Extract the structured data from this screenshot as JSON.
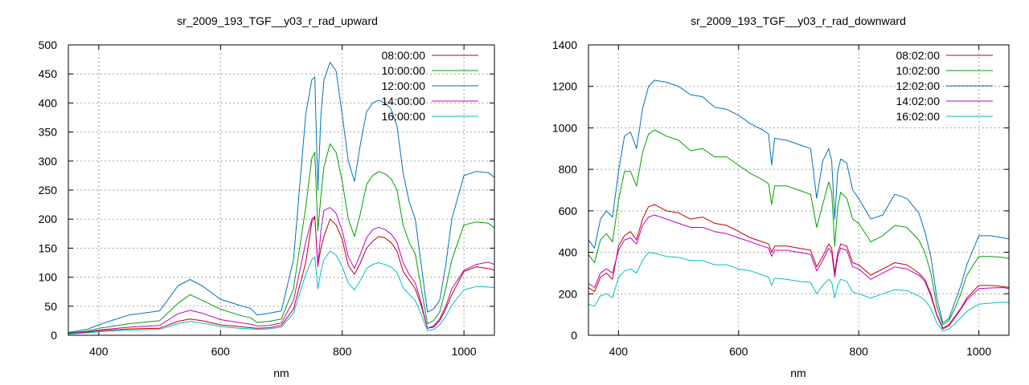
{
  "chart_data": [
    {
      "type": "line",
      "title": "sr_2009_193_TGF__y03_r_rad_upward",
      "xlabel": "nm",
      "ylabel": "",
      "xlim": [
        350,
        1050
      ],
      "ylim": [
        0,
        500
      ],
      "xticks": [
        400,
        600,
        800,
        1000
      ],
      "yticks": [
        0,
        50,
        100,
        150,
        200,
        250,
        300,
        350,
        400,
        450,
        500
      ],
      "grid": true,
      "legend_position": "top-right",
      "series": [
        {
          "name": "08:00:00",
          "color": "#c00000",
          "x": [
            350,
            380,
            400,
            420,
            450,
            500,
            530,
            550,
            570,
            600,
            630,
            650,
            660,
            680,
            700,
            720,
            740,
            750,
            755,
            760,
            765,
            770,
            780,
            790,
            800,
            810,
            820,
            830,
            840,
            850,
            860,
            870,
            880,
            890,
            900,
            910,
            920,
            930,
            940,
            950,
            960,
            970,
            980,
            1000,
            1020,
            1040,
            1050
          ],
          "y": [
            3,
            5,
            8,
            9,
            11,
            12,
            24,
            28,
            25,
            18,
            15,
            13,
            12,
            13,
            17,
            45,
            125,
            195,
            205,
            120,
            150,
            170,
            200,
            190,
            165,
            120,
            105,
            125,
            150,
            162,
            170,
            168,
            160,
            145,
            110,
            95,
            80,
            50,
            12,
            14,
            25,
            45,
            70,
            110,
            118,
            115,
            112
          ]
        },
        {
          "name": "10:00:00",
          "color": "#00a000",
          "x": [
            350,
            380,
            400,
            420,
            450,
            500,
            530,
            550,
            570,
            600,
            630,
            650,
            660,
            680,
            700,
            720,
            740,
            750,
            755,
            760,
            765,
            770,
            780,
            790,
            800,
            810,
            820,
            830,
            840,
            850,
            860,
            870,
            880,
            890,
            900,
            910,
            920,
            930,
            940,
            950,
            960,
            970,
            980,
            1000,
            1020,
            1040,
            1050
          ],
          "y": [
            4,
            7,
            12,
            15,
            20,
            25,
            55,
            70,
            60,
            45,
            35,
            30,
            22,
            24,
            28,
            80,
            220,
            305,
            315,
            180,
            240,
            290,
            330,
            315,
            265,
            200,
            170,
            210,
            260,
            275,
            282,
            278,
            270,
            250,
            190,
            160,
            140,
            80,
            20,
            25,
            40,
            80,
            130,
            190,
            195,
            193,
            185
          ]
        },
        {
          "name": "12:00:00",
          "color": "#0070c0",
          "x": [
            350,
            380,
            400,
            420,
            450,
            500,
            530,
            550,
            570,
            600,
            630,
            650,
            660,
            680,
            700,
            720,
            740,
            750,
            755,
            760,
            765,
            770,
            780,
            790,
            800,
            810,
            820,
            830,
            840,
            850,
            860,
            870,
            880,
            890,
            900,
            910,
            920,
            930,
            940,
            950,
            960,
            970,
            980,
            1000,
            1020,
            1040,
            1050
          ],
          "y": [
            5,
            10,
            18,
            25,
            35,
            42,
            85,
            96,
            85,
            62,
            52,
            46,
            35,
            38,
            42,
            130,
            380,
            440,
            445,
            250,
            380,
            440,
            470,
            455,
            380,
            300,
            265,
            330,
            385,
            400,
            405,
            400,
            390,
            360,
            280,
            230,
            200,
            120,
            40,
            45,
            60,
            120,
            200,
            275,
            282,
            280,
            272
          ]
        },
        {
          "name": "14:00:00",
          "color": "#c000c0",
          "x": [
            350,
            380,
            400,
            420,
            450,
            500,
            530,
            550,
            570,
            600,
            630,
            650,
            660,
            680,
            700,
            720,
            740,
            750,
            755,
            760,
            765,
            770,
            780,
            790,
            800,
            810,
            820,
            830,
            840,
            850,
            860,
            870,
            880,
            890,
            900,
            910,
            920,
            930,
            940,
            950,
            960,
            970,
            980,
            1000,
            1020,
            1040,
            1050
          ],
          "y": [
            3,
            6,
            9,
            11,
            14,
            17,
            37,
            43,
            38,
            27,
            22,
            19,
            16,
            17,
            21,
            60,
            160,
            200,
            205,
            118,
            180,
            215,
            220,
            210,
            180,
            135,
            115,
            140,
            168,
            182,
            186,
            182,
            175,
            160,
            125,
            105,
            90,
            55,
            12,
            16,
            28,
            50,
            80,
            112,
            122,
            126,
            122
          ]
        },
        {
          "name": "16:00:00",
          "color": "#00c0c0",
          "x": [
            350,
            380,
            400,
            420,
            450,
            500,
            530,
            550,
            570,
            600,
            630,
            650,
            660,
            680,
            700,
            720,
            740,
            750,
            755,
            760,
            765,
            770,
            780,
            790,
            800,
            810,
            820,
            830,
            840,
            850,
            860,
            870,
            880,
            890,
            900,
            910,
            920,
            930,
            940,
            950,
            960,
            970,
            980,
            1000,
            1020,
            1040,
            1050
          ],
          "y": [
            2,
            4,
            6,
            7,
            9,
            10,
            20,
            24,
            21,
            15,
            12,
            11,
            10,
            11,
            14,
            38,
            105,
            130,
            135,
            80,
            110,
            130,
            145,
            138,
            118,
            90,
            78,
            95,
            115,
            122,
            125,
            122,
            118,
            108,
            82,
            70,
            60,
            35,
            8,
            10,
            18,
            32,
            52,
            78,
            84,
            83,
            82
          ]
        }
      ]
    },
    {
      "type": "line",
      "title": "sr_2009_193_TGF__y03_r_rad_downward",
      "xlabel": "nm",
      "ylabel": "",
      "xlim": [
        350,
        1050
      ],
      "ylim": [
        0,
        1400
      ],
      "xticks": [
        400,
        600,
        800,
        1000
      ],
      "yticks": [
        0,
        200,
        400,
        600,
        800,
        1000,
        1200,
        1400
      ],
      "grid": true,
      "legend_position": "top-right",
      "series": [
        {
          "name": "08:02:00",
          "color": "#c00000",
          "x": [
            350,
            360,
            370,
            380,
            390,
            400,
            410,
            420,
            430,
            440,
            450,
            460,
            480,
            500,
            520,
            540,
            560,
            580,
            600,
            620,
            640,
            650,
            655,
            660,
            680,
            700,
            720,
            730,
            740,
            750,
            755,
            760,
            765,
            770,
            780,
            790,
            800,
            820,
            840,
            860,
            880,
            900,
            910,
            920,
            930,
            940,
            950,
            960,
            970,
            980,
            1000,
            1020,
            1040,
            1050
          ],
          "y": [
            230,
            210,
            280,
            300,
            270,
            430,
            480,
            500,
            460,
            560,
            620,
            630,
            600,
            590,
            560,
            570,
            540,
            530,
            500,
            470,
            450,
            440,
            400,
            430,
            430,
            420,
            410,
            330,
            380,
            440,
            420,
            300,
            400,
            440,
            430,
            350,
            340,
            290,
            320,
            350,
            340,
            300,
            270,
            200,
            100,
            35,
            50,
            90,
            130,
            180,
            240,
            240,
            235,
            230
          ]
        },
        {
          "name": "10:02:00",
          "color": "#00a000",
          "x": [
            350,
            360,
            370,
            380,
            390,
            400,
            410,
            420,
            430,
            440,
            450,
            460,
            480,
            500,
            520,
            540,
            560,
            580,
            600,
            620,
            640,
            650,
            655,
            660,
            680,
            700,
            720,
            730,
            740,
            750,
            755,
            760,
            765,
            770,
            780,
            790,
            800,
            820,
            840,
            860,
            880,
            900,
            910,
            920,
            930,
            940,
            950,
            960,
            970,
            980,
            1000,
            1020,
            1040,
            1050
          ],
          "y": [
            390,
            350,
            460,
            490,
            450,
            650,
            790,
            790,
            720,
            880,
            970,
            990,
            960,
            940,
            890,
            900,
            860,
            860,
            820,
            780,
            750,
            730,
            630,
            720,
            720,
            700,
            680,
            520,
            630,
            740,
            690,
            430,
            620,
            690,
            660,
            560,
            540,
            450,
            480,
            530,
            520,
            460,
            400,
            300,
            140,
            50,
            70,
            130,
            200,
            290,
            380,
            380,
            375,
            370
          ]
        },
        {
          "name": "12:02:00",
          "color": "#0070c0",
          "x": [
            350,
            360,
            370,
            380,
            390,
            400,
            410,
            420,
            430,
            440,
            450,
            460,
            480,
            500,
            520,
            540,
            560,
            580,
            600,
            620,
            640,
            650,
            655,
            660,
            680,
            700,
            720,
            730,
            740,
            750,
            755,
            760,
            765,
            770,
            780,
            790,
            800,
            820,
            840,
            860,
            880,
            900,
            910,
            920,
            930,
            940,
            950,
            960,
            970,
            980,
            1000,
            1020,
            1040,
            1050
          ],
          "y": [
            460,
            420,
            560,
            600,
            570,
            790,
            960,
            980,
            900,
            1090,
            1200,
            1230,
            1220,
            1200,
            1160,
            1150,
            1100,
            1090,
            1060,
            1020,
            990,
            970,
            820,
            950,
            940,
            920,
            900,
            660,
            840,
            900,
            840,
            560,
            790,
            850,
            830,
            700,
            660,
            560,
            580,
            680,
            660,
            590,
            500,
            380,
            180,
            60,
            80,
            160,
            240,
            340,
            480,
            480,
            470,
            465
          ]
        },
        {
          "name": "14:02:00",
          "color": "#c000c0",
          "x": [
            350,
            360,
            370,
            380,
            390,
            400,
            410,
            420,
            430,
            440,
            450,
            460,
            480,
            500,
            520,
            540,
            560,
            580,
            600,
            620,
            640,
            650,
            655,
            660,
            680,
            700,
            720,
            730,
            740,
            750,
            755,
            760,
            765,
            770,
            780,
            790,
            800,
            820,
            840,
            860,
            880,
            900,
            910,
            920,
            930,
            940,
            950,
            960,
            970,
            980,
            1000,
            1020,
            1040,
            1050
          ],
          "y": [
            250,
            230,
            300,
            320,
            300,
            410,
            460,
            470,
            440,
            530,
            570,
            580,
            560,
            540,
            520,
            520,
            500,
            490,
            470,
            450,
            430,
            420,
            380,
            410,
            410,
            400,
            390,
            310,
            360,
            420,
            400,
            280,
            380,
            420,
            410,
            330,
            320,
            270,
            300,
            330,
            320,
            290,
            260,
            190,
            95,
            30,
            45,
            85,
            125,
            170,
            225,
            228,
            230,
            225
          ]
        },
        {
          "name": "16:02:00",
          "color": "#00c0c0",
          "x": [
            350,
            360,
            370,
            380,
            390,
            400,
            410,
            420,
            430,
            440,
            450,
            460,
            480,
            500,
            520,
            540,
            560,
            580,
            600,
            620,
            640,
            650,
            655,
            660,
            680,
            700,
            720,
            730,
            740,
            750,
            755,
            760,
            765,
            770,
            780,
            790,
            800,
            820,
            840,
            860,
            880,
            900,
            910,
            920,
            930,
            940,
            950,
            960,
            970,
            980,
            1000,
            1020,
            1040,
            1050
          ],
          "y": [
            150,
            140,
            190,
            200,
            180,
            280,
            310,
            320,
            300,
            360,
            400,
            395,
            380,
            375,
            360,
            360,
            340,
            340,
            320,
            310,
            290,
            280,
            240,
            275,
            270,
            260,
            255,
            200,
            240,
            270,
            255,
            180,
            240,
            270,
            260,
            210,
            200,
            180,
            200,
            220,
            215,
            190,
            170,
            130,
            60,
            20,
            30,
            55,
            85,
            115,
            150,
            155,
            160,
            158
          ]
        }
      ]
    }
  ]
}
